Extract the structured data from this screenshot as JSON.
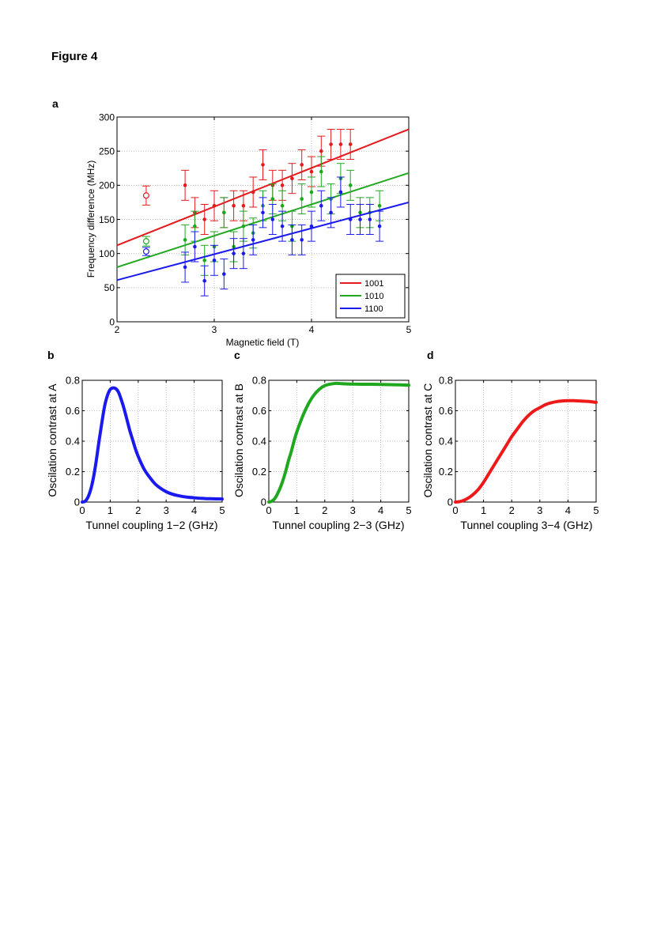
{
  "figure_title": "Figure 4",
  "panel_labels": [
    "a",
    "b",
    "c",
    "d"
  ],
  "chart_data": [
    {
      "panel": "a",
      "type": "scatter",
      "xlabel": "Magnetic field (T)",
      "ylabel": "Frequency difference (MHz)",
      "xlim": [
        2,
        5
      ],
      "ylim": [
        0,
        300
      ],
      "xticks": [
        2,
        3,
        4,
        5
      ],
      "yticks": [
        0,
        50,
        100,
        150,
        200,
        250,
        300
      ],
      "grid": true,
      "legend_position": "bottom-right",
      "legend": [
        "1001",
        "1010",
        "1100"
      ],
      "series": [
        {
          "name": "1001",
          "color": "#e41a1c",
          "fit_line": [
            [
              2,
              112
            ],
            [
              5,
              282
            ]
          ],
          "open_point": {
            "x": 2.3,
            "y": 185,
            "err": 14
          },
          "points": [
            {
              "x": 2.7,
              "y": 200,
              "err": 22
            },
            {
              "x": 2.8,
              "y": 160,
              "err": 22
            },
            {
              "x": 2.9,
              "y": 150,
              "err": 22
            },
            {
              "x": 3.0,
              "y": 170,
              "err": 22
            },
            {
              "x": 3.1,
              "y": 160,
              "err": 22
            },
            {
              "x": 3.2,
              "y": 170,
              "err": 22
            },
            {
              "x": 3.3,
              "y": 170,
              "err": 22
            },
            {
              "x": 3.4,
              "y": 190,
              "err": 22
            },
            {
              "x": 3.5,
              "y": 230,
              "err": 22
            },
            {
              "x": 3.6,
              "y": 200,
              "err": 22
            },
            {
              "x": 3.7,
              "y": 200,
              "err": 22
            },
            {
              "x": 3.8,
              "y": 210,
              "err": 22
            },
            {
              "x": 3.9,
              "y": 230,
              "err": 22
            },
            {
              "x": 4.0,
              "y": 220,
              "err": 22
            },
            {
              "x": 4.1,
              "y": 250,
              "err": 22
            },
            {
              "x": 4.2,
              "y": 260,
              "err": 22
            },
            {
              "x": 4.3,
              "y": 260,
              "err": 22
            },
            {
              "x": 4.4,
              "y": 260,
              "err": 22
            }
          ]
        },
        {
          "name": "1010",
          "color": "#1fa81f",
          "fit_line": [
            [
              2,
              80
            ],
            [
              5,
              218
            ]
          ],
          "open_point": {
            "x": 2.3,
            "y": 118,
            "err": 7
          },
          "points": [
            {
              "x": 2.7,
              "y": 120,
              "err": 22
            },
            {
              "x": 2.8,
              "y": 140,
              "err": 22
            },
            {
              "x": 2.9,
              "y": 90,
              "err": 22
            },
            {
              "x": 3.0,
              "y": 110,
              "err": 22
            },
            {
              "x": 3.1,
              "y": 160,
              "err": 22
            },
            {
              "x": 3.2,
              "y": 110,
              "err": 22
            },
            {
              "x": 3.3,
              "y": 140,
              "err": 22
            },
            {
              "x": 3.4,
              "y": 130,
              "err": 22
            },
            {
              "x": 3.5,
              "y": 170,
              "err": 22
            },
            {
              "x": 3.6,
              "y": 180,
              "err": 22
            },
            {
              "x": 3.7,
              "y": 170,
              "err": 22
            },
            {
              "x": 3.8,
              "y": 140,
              "err": 22
            },
            {
              "x": 3.9,
              "y": 180,
              "err": 22
            },
            {
              "x": 4.0,
              "y": 190,
              "err": 22
            },
            {
              "x": 4.1,
              "y": 220,
              "err": 22
            },
            {
              "x": 4.2,
              "y": 180,
              "err": 22
            },
            {
              "x": 4.3,
              "y": 210,
              "err": 22
            },
            {
              "x": 4.4,
              "y": 200,
              "err": 22
            },
            {
              "x": 4.5,
              "y": 160,
              "err": 22
            },
            {
              "x": 4.6,
              "y": 160,
              "err": 22
            },
            {
              "x": 4.7,
              "y": 170,
              "err": 22
            }
          ]
        },
        {
          "name": "1100",
          "color": "#1a1aee",
          "fit_line": [
            [
              2,
              61
            ],
            [
              5,
              175
            ]
          ],
          "open_point": {
            "x": 2.3,
            "y": 103,
            "err": 6
          },
          "points": [
            {
              "x": 2.7,
              "y": 80,
              "err": 22
            },
            {
              "x": 2.8,
              "y": 110,
              "err": 22
            },
            {
              "x": 2.9,
              "y": 60,
              "err": 22
            },
            {
              "x": 3.0,
              "y": 90,
              "err": 22
            },
            {
              "x": 3.1,
              "y": 70,
              "err": 22
            },
            {
              "x": 3.2,
              "y": 100,
              "err": 22
            },
            {
              "x": 3.3,
              "y": 100,
              "err": 22
            },
            {
              "x": 3.4,
              "y": 120,
              "err": 22
            },
            {
              "x": 3.5,
              "y": 160,
              "err": 22
            },
            {
              "x": 3.6,
              "y": 150,
              "err": 22
            },
            {
              "x": 3.7,
              "y": 140,
              "err": 22
            },
            {
              "x": 3.8,
              "y": 120,
              "err": 22
            },
            {
              "x": 3.9,
              "y": 120,
              "err": 22
            },
            {
              "x": 4.0,
              "y": 140,
              "err": 22
            },
            {
              "x": 4.1,
              "y": 170,
              "err": 22
            },
            {
              "x": 4.2,
              "y": 160,
              "err": 22
            },
            {
              "x": 4.3,
              "y": 190,
              "err": 22
            },
            {
              "x": 4.4,
              "y": 150,
              "err": 22
            },
            {
              "x": 4.5,
              "y": 150,
              "err": 22
            },
            {
              "x": 4.6,
              "y": 150,
              "err": 22
            },
            {
              "x": 4.7,
              "y": 140,
              "err": 22
            }
          ]
        }
      ]
    },
    {
      "panel": "b",
      "type": "line",
      "xlabel": "Tunnel coupling 1−2 (GHz)",
      "ylabel": "Oscilation contrast at A",
      "xlim": [
        0,
        5
      ],
      "ylim": [
        0,
        0.8
      ],
      "xticks": [
        0,
        1,
        2,
        3,
        4,
        5
      ],
      "yticks": [
        0,
        0.2,
        0.4,
        0.6,
        0.8
      ],
      "grid": true,
      "series": [
        {
          "color": "#1a1aee",
          "x": [
            0,
            0.1,
            0.2,
            0.3,
            0.4,
            0.5,
            0.6,
            0.7,
            0.8,
            0.9,
            1.0,
            1.1,
            1.2,
            1.3,
            1.4,
            1.5,
            1.6,
            1.7,
            1.8,
            1.9,
            2.0,
            2.2,
            2.4,
            2.6,
            2.8,
            3.0,
            3.2,
            3.4,
            3.6,
            3.8,
            4.0,
            4.2,
            4.4,
            4.6,
            4.8,
            5.0
          ],
          "y": [
            0,
            0.005,
            0.03,
            0.08,
            0.16,
            0.27,
            0.4,
            0.52,
            0.63,
            0.7,
            0.74,
            0.75,
            0.745,
            0.72,
            0.67,
            0.61,
            0.54,
            0.47,
            0.41,
            0.35,
            0.3,
            0.22,
            0.165,
            0.12,
            0.09,
            0.068,
            0.053,
            0.043,
            0.036,
            0.031,
            0.028,
            0.025,
            0.023,
            0.022,
            0.021,
            0.02
          ]
        }
      ]
    },
    {
      "panel": "c",
      "type": "line",
      "xlabel": "Tunnel coupling 2−3 (GHz)",
      "ylabel": "Oscilation contrast at B",
      "xlim": [
        0,
        5
      ],
      "ylim": [
        0,
        0.8
      ],
      "xticks": [
        0,
        1,
        2,
        3,
        4,
        5
      ],
      "yticks": [
        0,
        0.2,
        0.4,
        0.6,
        0.8
      ],
      "grid": true,
      "series": [
        {
          "color": "#1fa81f",
          "x": [
            0,
            0.1,
            0.2,
            0.3,
            0.4,
            0.5,
            0.6,
            0.7,
            0.8,
            0.9,
            1.0,
            1.2,
            1.4,
            1.6,
            1.8,
            2.0,
            2.2,
            2.4,
            2.6,
            2.8,
            3.0,
            3.5,
            4.0,
            4.5,
            5.0
          ],
          "y": [
            0,
            0.005,
            0.02,
            0.05,
            0.09,
            0.14,
            0.2,
            0.27,
            0.33,
            0.4,
            0.46,
            0.56,
            0.64,
            0.7,
            0.74,
            0.765,
            0.775,
            0.78,
            0.778,
            0.776,
            0.775,
            0.774,
            0.773,
            0.771,
            0.768
          ]
        }
      ]
    },
    {
      "panel": "d",
      "type": "line",
      "xlabel": "Tunnel coupling 3−4 (GHz)",
      "ylabel": "Oscilation contrast at C",
      "xlim": [
        0,
        5
      ],
      "ylim": [
        0,
        0.8
      ],
      "xticks": [
        0,
        1,
        2,
        3,
        4,
        5
      ],
      "yticks": [
        0,
        0.2,
        0.4,
        0.6,
        0.8
      ],
      "grid": true,
      "series": [
        {
          "color": "#ee1a1a",
          "x": [
            0,
            0.2,
            0.4,
            0.6,
            0.8,
            1.0,
            1.2,
            1.4,
            1.6,
            1.8,
            2.0,
            2.2,
            2.4,
            2.6,
            2.8,
            3.0,
            3.2,
            3.4,
            3.6,
            3.8,
            4.0,
            4.2,
            4.4,
            4.6,
            4.8,
            5.0
          ],
          "y": [
            0,
            0.005,
            0.02,
            0.045,
            0.08,
            0.13,
            0.19,
            0.25,
            0.31,
            0.37,
            0.43,
            0.48,
            0.53,
            0.57,
            0.6,
            0.62,
            0.64,
            0.652,
            0.66,
            0.664,
            0.666,
            0.666,
            0.664,
            0.662,
            0.66,
            0.655
          ]
        }
      ]
    }
  ]
}
